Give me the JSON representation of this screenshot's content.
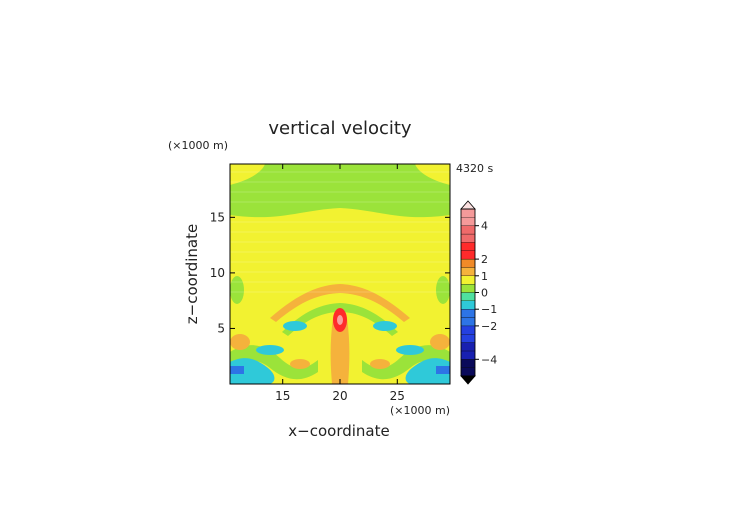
{
  "chart_data": {
    "type": "heatmap",
    "title": "vertical velocity",
    "xlabel": "x−coordinate",
    "ylabel": "z−coordinate",
    "x_unit_label": "(×1000 m)",
    "y_unit_label": "(×1000 m)",
    "time_label": "4320 s",
    "xlim": [
      10.4,
      29.6
    ],
    "ylim": [
      0,
      19.8
    ],
    "x_ticks": [
      15,
      20,
      25
    ],
    "y_ticks": [
      5,
      10,
      15
    ],
    "colorbar": {
      "levels": [
        -5,
        -4.5,
        -4,
        -3.5,
        -3,
        -2.5,
        -2,
        -1.5,
        -1,
        -0.5,
        0,
        0.5,
        1,
        1.5,
        2,
        2.5,
        3,
        3.5,
        4,
        4.5,
        5
      ],
      "tick_labels": [
        "4",
        "2",
        "1",
        "0",
        "−1",
        "−2",
        "−4"
      ],
      "tick_values": [
        4,
        2,
        1,
        0,
        -1,
        -2,
        -4
      ],
      "extend": "both"
    },
    "features": [
      {
        "desc": "upper green band",
        "z_range": [
          16,
          19.8
        ],
        "value": -0.3
      },
      {
        "desc": "strong updraft core",
        "x": 20,
        "z": 5.8,
        "value": 3
      }
    ]
  }
}
